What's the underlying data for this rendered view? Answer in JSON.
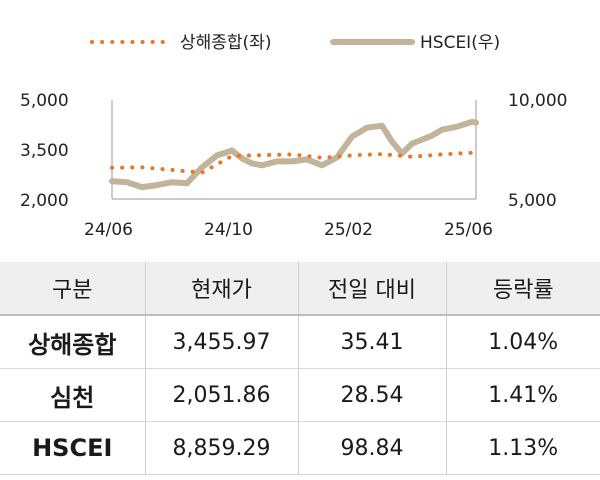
{
  "chart_data": {
    "type": "line",
    "legend": [
      {
        "label": "상해종합(좌)",
        "color": "#e8772e",
        "style": "dotted"
      },
      {
        "label": "HSCEI(우)",
        "color": "#c2b49a",
        "style": "solid"
      }
    ],
    "legend_placement": "top-center",
    "x_tick_labels": [
      "24/06",
      "24/10",
      "25/02",
      "25/06"
    ],
    "y_left": {
      "ticks": [
        "5,000",
        "3,500",
        "2,000"
      ],
      "range": [
        2000,
        5000
      ]
    },
    "y_right": {
      "ticks": [
        "10,000",
        "5,000"
      ],
      "range": [
        5000,
        10000
      ]
    },
    "grid": false,
    "series": [
      {
        "name": "상해종합(좌)",
        "axis": "left",
        "x": [
          "24/06",
          "24/07",
          "24/08",
          "24/09",
          "24/10",
          "24/11",
          "24/12",
          "25/01",
          "25/02",
          "25/03",
          "25/04",
          "25/05",
          "25/06"
        ],
        "values": [
          2950,
          2960,
          2880,
          2800,
          3300,
          3330,
          3350,
          3250,
          3320,
          3360,
          3280,
          3350,
          3400
        ]
      },
      {
        "name": "HSCEI(우)",
        "axis": "right",
        "x": [
          "24/06",
          "24/06",
          "24/07",
          "24/07",
          "24/08",
          "24/08",
          "24/09",
          "24/09",
          "24/10",
          "24/10",
          "24/10",
          "24/11",
          "24/11",
          "24/12",
          "24/12",
          "25/01",
          "25/01",
          "25/02",
          "25/02",
          "25/03",
          "25/03",
          "25/03",
          "25/04",
          "25/04",
          "25/04",
          "25/05",
          "25/05",
          "25/06",
          "25/06"
        ],
        "values": [
          5900,
          5850,
          5600,
          5700,
          5850,
          5800,
          6600,
          7200,
          7450,
          7050,
          6800,
          6700,
          6900,
          6900,
          7000,
          6700,
          7100,
          8150,
          8600,
          8700,
          7900,
          7300,
          7800,
          8000,
          8200,
          8500,
          8650,
          8900,
          8860
        ]
      }
    ]
  },
  "table": {
    "headers": [
      "구분",
      "현재가",
      "전일 대비",
      "등락률"
    ],
    "rows": [
      [
        "상해종합",
        "3,455.97",
        "35.41",
        "1.04%"
      ],
      [
        "심천",
        "2,051.86",
        "28.54",
        "1.41%"
      ],
      [
        "HSCEI",
        "8,859.29",
        "98.84",
        "1.13%"
      ]
    ]
  }
}
